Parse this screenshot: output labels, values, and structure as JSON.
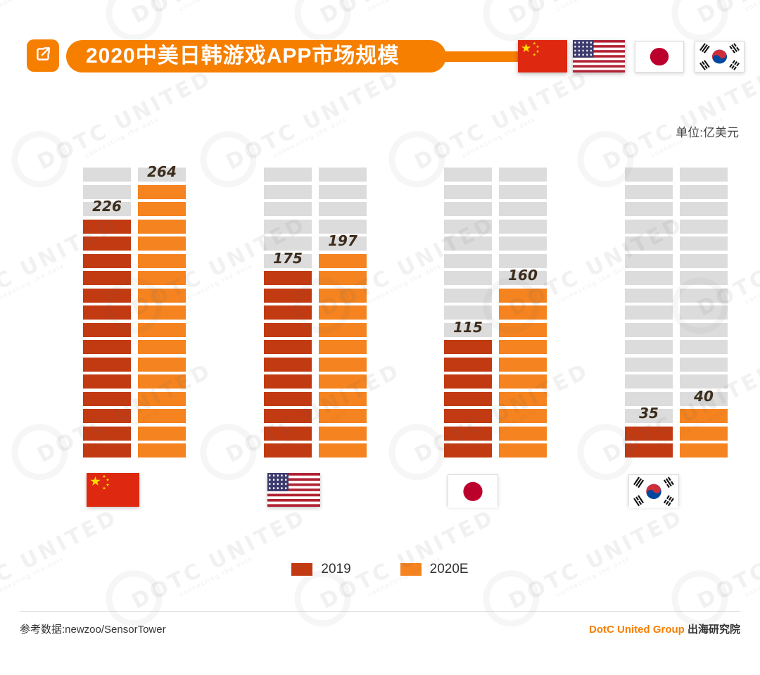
{
  "header": {
    "title": "2020中美日韩游戏APP市场规模",
    "unit_label": "单位:亿美元"
  },
  "chart_data": {
    "type": "bar",
    "title": "2020中美日韩游戏APP市场规模",
    "unit": "亿美元",
    "categories": [
      "中国",
      "美国",
      "日本",
      "韩国"
    ],
    "series": [
      {
        "name": "2019",
        "color": "#c23a12",
        "values": [
          226,
          175,
          115,
          35
        ],
        "blocks": [
          14,
          11,
          7,
          2
        ]
      },
      {
        "name": "2020E",
        "color": "#f5831f",
        "values": [
          264,
          197,
          160,
          40
        ],
        "blocks": [
          16,
          12,
          10,
          3
        ]
      }
    ],
    "ylim": [
      0,
      280
    ],
    "total_blocks": 17,
    "empty_color": "#dcdcdc",
    "grid": false,
    "legend_position": "bottom",
    "value_labels": [
      226,
      264,
      175,
      197,
      115,
      160,
      35,
      40
    ]
  },
  "legend": {
    "items": [
      {
        "label": "2019",
        "color": "#c23a12"
      },
      {
        "label": "2020E",
        "color": "#f5831f"
      }
    ]
  },
  "footer": {
    "source": "参考数据:newzoo/SensorTower",
    "brand": "DotC United Group",
    "brand_suffix": " 出海研究院"
  },
  "watermark": {
    "text": "DOTC UNITED",
    "subtext": "connecting the dots"
  }
}
